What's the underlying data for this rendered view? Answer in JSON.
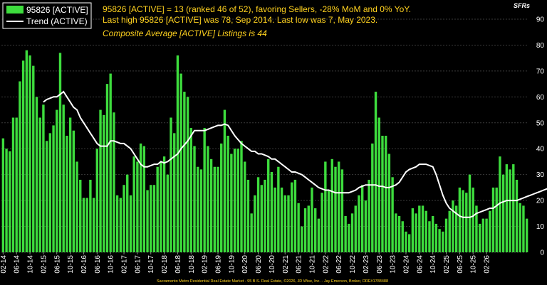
{
  "chart_data": {
    "type": "bar",
    "corner_label": "SFRs",
    "legend": [
      {
        "name": "95826 [ACTIVE]",
        "kind": "bar",
        "color": "#3ddc3d"
      },
      {
        "name": "Trend (ACTIVE)",
        "kind": "line",
        "color": "#ffffff"
      }
    ],
    "info_lines": [
      "95826 [ACTIVE] = 13 (ranked 46 of 52), favoring Sellers, -28% MoM and 0% YoY.",
      "Last high 95826 [ACTIVE] was 78, Sep 2014. Last low was 7, May 2023."
    ],
    "composite_line": "Composite Average [ACTIVE] Listings is 44",
    "footer": "Sacramento Metro Residential Real Estate Market - 95 B.S. Real Estate, ©2026, JD Wise, Inc. - Jay Emerson, Broker, DRE#1788488",
    "ylim": [
      0,
      90
    ],
    "yticks": [
      0,
      10,
      20,
      30,
      40,
      50,
      60,
      70,
      80,
      90
    ],
    "x_tick_labels": [
      "02-14",
      "06-14",
      "10-14",
      "02-15",
      "06-15",
      "10-15",
      "02-16",
      "06-16",
      "10-16",
      "02-17",
      "06-17",
      "10-17",
      "02-18",
      "06-18",
      "10-18",
      "02-19",
      "06-19",
      "10-19",
      "02-20",
      "06-20",
      "10-20",
      "02-21",
      "06-21",
      "10-21",
      "02-22",
      "06-22",
      "10-22",
      "02-23",
      "06-23",
      "10-23",
      "02-24",
      "06-24",
      "10-24",
      "02-25",
      "06-25",
      "10-25",
      "02-26"
    ],
    "series": [
      {
        "name": "95826 [ACTIVE]",
        "kind": "bar",
        "color": "#3ddc3d",
        "values": [
          44,
          40,
          39,
          52,
          52,
          66,
          74,
          78,
          76,
          72,
          60,
          52,
          57,
          43,
          46,
          49,
          55,
          77,
          57,
          45,
          52,
          47,
          35,
          28,
          21,
          21,
          28,
          21,
          40,
          55,
          53,
          65,
          69,
          54,
          22,
          21,
          26,
          30,
          22,
          37,
          35,
          42,
          41,
          24,
          26,
          26,
          33,
          35,
          37,
          30,
          52,
          46,
          76,
          69,
          62,
          60,
          48,
          41,
          33,
          32,
          48,
          41,
          36,
          33,
          33,
          42,
          55,
          45,
          38,
          40,
          40,
          43,
          35,
          28,
          15,
          22,
          29,
          26,
          28,
          36,
          31,
          25,
          33,
          25,
          22,
          22,
          27,
          28,
          19,
          10,
          17,
          18,
          25,
          17,
          13,
          23,
          35,
          24,
          36,
          33,
          35,
          32,
          14,
          11,
          15,
          18,
          22,
          26,
          20,
          28,
          42,
          62,
          52,
          45,
          45,
          38,
          29,
          15,
          14,
          12,
          8,
          7,
          17,
          15,
          18,
          18,
          16,
          12,
          14,
          11,
          9,
          8,
          13,
          16,
          20,
          18,
          25,
          24,
          23,
          30,
          25,
          18,
          11,
          13,
          13,
          16,
          25,
          25,
          37,
          30,
          34,
          32,
          34,
          28,
          19,
          18,
          13
        ]
      },
      {
        "name": "Trend (ACTIVE)",
        "kind": "line",
        "color": "#ffffff",
        "start_index": 12,
        "values": [
          58,
          59,
          59.5,
          60,
          60,
          61,
          62,
          60,
          58,
          56,
          55,
          52,
          50,
          48,
          46,
          44,
          42,
          41,
          41,
          41,
          43,
          43,
          42.5,
          42,
          42,
          41,
          40,
          38,
          36,
          34,
          33,
          33,
          33.5,
          34,
          34,
          35,
          34.5,
          35,
          36,
          37,
          38,
          40,
          41.5,
          43,
          45,
          47,
          47,
          47,
          47,
          47.5,
          48,
          48.5,
          49,
          49,
          49.5,
          49,
          47,
          45,
          43.5,
          42,
          41,
          40,
          39,
          39,
          38,
          38,
          37.5,
          37,
          36,
          36,
          35,
          34,
          33,
          32,
          31,
          31,
          30.5,
          30,
          29,
          28,
          27,
          26,
          25,
          24.5,
          24,
          24,
          23.5,
          23,
          23,
          23,
          23,
          23,
          23.5,
          24,
          25,
          25.5,
          26,
          26,
          26,
          26,
          25.5,
          25.5,
          25,
          25,
          25.5,
          26,
          27,
          29,
          31,
          32,
          32.5,
          33,
          34,
          34,
          34,
          33.5,
          33,
          30,
          26,
          22,
          19,
          17,
          16,
          15,
          14,
          13.5,
          13.5,
          13.5,
          14,
          15,
          15.5,
          16,
          16.5,
          17,
          17,
          18,
          19,
          19.5,
          20,
          20,
          20,
          20,
          20.5,
          21,
          21.5,
          22,
          22.5,
          23,
          23.5,
          24,
          24.5,
          25,
          25,
          25.5,
          25.5
        ]
      }
    ]
  }
}
